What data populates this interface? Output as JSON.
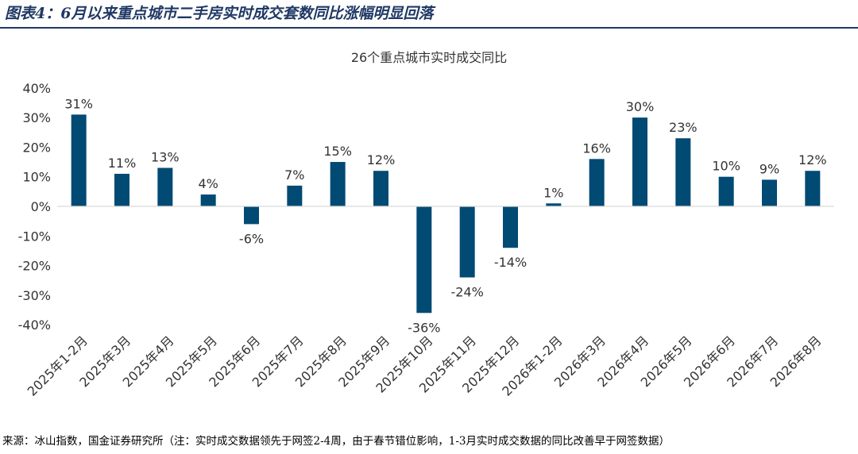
{
  "figure": {
    "title": "图表4：6月以来重点城市二手房实时成交套数同比涨幅明显回落",
    "source": "来源：冰山指数，国金证券研究所（注：实时成交数据领先于网签2-4周，由于春节错位影响，1-3月实时成交数据的同比改善早于网签数据）"
  },
  "chart_data": {
    "type": "bar",
    "title": "26个重点城市实时成交同比",
    "xlabel": "",
    "ylabel": "",
    "categories": [
      "2025年1-2月",
      "2025年3月",
      "2025年4月",
      "2025年5月",
      "2025年6月",
      "2025年7月",
      "2025年8月",
      "2025年9月",
      "2025年10月",
      "2025年11月",
      "2025年12月",
      "2026年1-2月",
      "2026年3月",
      "2026年4月",
      "2026年5月",
      "2026年6月",
      "2026年7月",
      "2026年8月"
    ],
    "values": [
      31,
      11,
      13,
      4,
      -6,
      7,
      15,
      12,
      -36,
      -24,
      -14,
      1,
      16,
      30,
      23,
      10,
      9,
      12
    ],
    "data_labels": [
      "31%",
      "11%",
      "13%",
      "4%",
      "-6%",
      "7%",
      "15%",
      "12%",
      "-36%",
      "-24%",
      "-14%",
      "1%",
      "16%",
      "30%",
      "23%",
      "10%",
      "9%",
      "12%"
    ],
    "yticks": [
      40,
      30,
      20,
      10,
      0,
      -10,
      -20,
      -30,
      -40
    ],
    "ytick_labels": [
      "40%",
      "30%",
      "20%",
      "10%",
      "0%",
      "-10%",
      "-20%",
      "-30%",
      "-40%"
    ],
    "ylim": [
      -40,
      40
    ],
    "bar_color": "#004a73",
    "grid": false,
    "legend": "none"
  }
}
